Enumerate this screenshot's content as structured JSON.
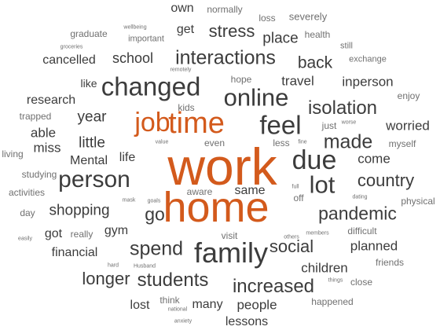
{
  "colors": {
    "primary": "#3c3c3c",
    "accent": "#d35a1c",
    "minor": "#707070"
  },
  "words": [
    {
      "text": "work",
      "weight": 5,
      "color": "accent"
    },
    {
      "text": "home",
      "weight": 5,
      "color": "accent"
    },
    {
      "text": "time",
      "weight": 4,
      "color": "accent"
    },
    {
      "text": "job",
      "weight": 4,
      "color": "accent"
    },
    {
      "text": "family",
      "weight": 4,
      "color": "primary"
    },
    {
      "text": "person",
      "weight": 4,
      "color": "primary"
    },
    {
      "text": "changed",
      "weight": 4,
      "color": "primary"
    },
    {
      "text": "online",
      "weight": 4,
      "color": "primary"
    },
    {
      "text": "feel",
      "weight": 4,
      "color": "primary"
    },
    {
      "text": "due",
      "weight": 4,
      "color": "primary"
    },
    {
      "text": "lot",
      "weight": 4,
      "color": "primary"
    },
    {
      "text": "interactions",
      "weight": 3,
      "color": "primary"
    },
    {
      "text": "spend",
      "weight": 3,
      "color": "primary"
    },
    {
      "text": "students",
      "weight": 3,
      "color": "primary"
    },
    {
      "text": "increased",
      "weight": 3,
      "color": "primary"
    },
    {
      "text": "pandemic",
      "weight": 3,
      "color": "primary"
    },
    {
      "text": "made",
      "weight": 3,
      "color": "primary"
    },
    {
      "text": "isolation",
      "weight": 3,
      "color": "primary"
    },
    {
      "text": "country",
      "weight": 3,
      "color": "primary"
    },
    {
      "text": "go",
      "weight": 3,
      "color": "primary"
    },
    {
      "text": "back",
      "weight": 3,
      "color": "primary"
    },
    {
      "text": "longer",
      "weight": 3,
      "color": "primary"
    },
    {
      "text": "stress",
      "weight": 3,
      "color": "primary"
    },
    {
      "text": "social",
      "weight": 3,
      "color": "primary"
    },
    {
      "text": "school",
      "weight": 2,
      "color": "primary"
    },
    {
      "text": "year",
      "weight": 2,
      "color": "primary"
    },
    {
      "text": "little",
      "weight": 2,
      "color": "primary"
    },
    {
      "text": "shopping",
      "weight": 2,
      "color": "primary"
    },
    {
      "text": "place",
      "weight": 2,
      "color": "primary"
    },
    {
      "text": "travel",
      "weight": 2,
      "color": "primary"
    },
    {
      "text": "inperson",
      "weight": 2,
      "color": "primary"
    },
    {
      "text": "worried",
      "weight": 2,
      "color": "primary"
    },
    {
      "text": "come",
      "weight": 2,
      "color": "primary"
    },
    {
      "text": "planned",
      "weight": 2,
      "color": "primary"
    },
    {
      "text": "children",
      "weight": 2,
      "color": "primary"
    },
    {
      "text": "people",
      "weight": 2,
      "color": "primary"
    },
    {
      "text": "many",
      "weight": 2,
      "color": "primary"
    },
    {
      "text": "financial",
      "weight": 2,
      "color": "primary"
    },
    {
      "text": "own",
      "weight": 2,
      "color": "primary"
    },
    {
      "text": "get",
      "weight": 2,
      "color": "primary"
    },
    {
      "text": "cancelled",
      "weight": 2,
      "color": "primary"
    },
    {
      "text": "research",
      "weight": 2,
      "color": "primary"
    },
    {
      "text": "able",
      "weight": 2,
      "color": "primary"
    },
    {
      "text": "miss",
      "weight": 2,
      "color": "primary"
    },
    {
      "text": "Mental",
      "weight": 2,
      "color": "primary"
    },
    {
      "text": "life",
      "weight": 2,
      "color": "primary"
    },
    {
      "text": "same",
      "weight": 2,
      "color": "primary"
    },
    {
      "text": "got",
      "weight": 2,
      "color": "primary"
    },
    {
      "text": "gym",
      "weight": 2,
      "color": "primary"
    },
    {
      "text": "lost",
      "weight": 2,
      "color": "primary"
    },
    {
      "text": "lessons",
      "weight": 2,
      "color": "primary"
    },
    {
      "text": "like",
      "weight": 1,
      "color": "primary"
    },
    {
      "text": "graduate",
      "weight": 1,
      "color": "minor"
    },
    {
      "text": "important",
      "weight": 1,
      "color": "minor"
    },
    {
      "text": "normally",
      "weight": 1,
      "color": "minor"
    },
    {
      "text": "loss",
      "weight": 1,
      "color": "minor"
    },
    {
      "text": "severely",
      "weight": 1,
      "color": "minor"
    },
    {
      "text": "health",
      "weight": 1,
      "color": "minor"
    },
    {
      "text": "still",
      "weight": 1,
      "color": "minor"
    },
    {
      "text": "exchange",
      "weight": 1,
      "color": "minor"
    },
    {
      "text": "hope",
      "weight": 1,
      "color": "minor"
    },
    {
      "text": "enjoy",
      "weight": 1,
      "color": "minor"
    },
    {
      "text": "kids",
      "weight": 1,
      "color": "minor"
    },
    {
      "text": "trapped",
      "weight": 1,
      "color": "minor"
    },
    {
      "text": "just",
      "weight": 1,
      "color": "minor"
    },
    {
      "text": "even",
      "weight": 1,
      "color": "minor"
    },
    {
      "text": "less",
      "weight": 1,
      "color": "minor"
    },
    {
      "text": "myself",
      "weight": 1,
      "color": "minor"
    },
    {
      "text": "living",
      "weight": 1,
      "color": "minor"
    },
    {
      "text": "studying",
      "weight": 1,
      "color": "minor"
    },
    {
      "text": "activities",
      "weight": 1,
      "color": "minor"
    },
    {
      "text": "aware",
      "weight": 1,
      "color": "minor"
    },
    {
      "text": "off",
      "weight": 1,
      "color": "minor"
    },
    {
      "text": "physical",
      "weight": 1,
      "color": "minor"
    },
    {
      "text": "day",
      "weight": 1,
      "color": "minor"
    },
    {
      "text": "really",
      "weight": 1,
      "color": "minor"
    },
    {
      "text": "visit",
      "weight": 1,
      "color": "minor"
    },
    {
      "text": "difficult",
      "weight": 1,
      "color": "minor"
    },
    {
      "text": "friends",
      "weight": 1,
      "color": "minor"
    },
    {
      "text": "close",
      "weight": 1,
      "color": "minor"
    },
    {
      "text": "happened",
      "weight": 1,
      "color": "minor"
    },
    {
      "text": "think",
      "weight": 1,
      "color": "minor"
    },
    {
      "text": "wellbeing",
      "weight": 0,
      "color": "minor"
    },
    {
      "text": "groceries",
      "weight": 0,
      "color": "minor"
    },
    {
      "text": "remotely",
      "weight": 0,
      "color": "minor"
    },
    {
      "text": "worse",
      "weight": 0,
      "color": "minor"
    },
    {
      "text": "fine",
      "weight": 0,
      "color": "minor"
    },
    {
      "text": "value",
      "weight": 0,
      "color": "minor"
    },
    {
      "text": "full",
      "weight": 0,
      "color": "minor"
    },
    {
      "text": "dating",
      "weight": 0,
      "color": "minor"
    },
    {
      "text": "mask",
      "weight": 0,
      "color": "minor"
    },
    {
      "text": "goals",
      "weight": 0,
      "color": "minor"
    },
    {
      "text": "easily",
      "weight": 0,
      "color": "minor"
    },
    {
      "text": "others",
      "weight": 0,
      "color": "minor"
    },
    {
      "text": "members",
      "weight": 0,
      "color": "minor"
    },
    {
      "text": "hard",
      "weight": 0,
      "color": "minor"
    },
    {
      "text": "Husband",
      "weight": 0,
      "color": "minor"
    },
    {
      "text": "things",
      "weight": 0,
      "color": "minor"
    },
    {
      "text": "national",
      "weight": 0,
      "color": "minor"
    },
    {
      "text": "anxiety",
      "weight": 0,
      "color": "minor"
    }
  ]
}
